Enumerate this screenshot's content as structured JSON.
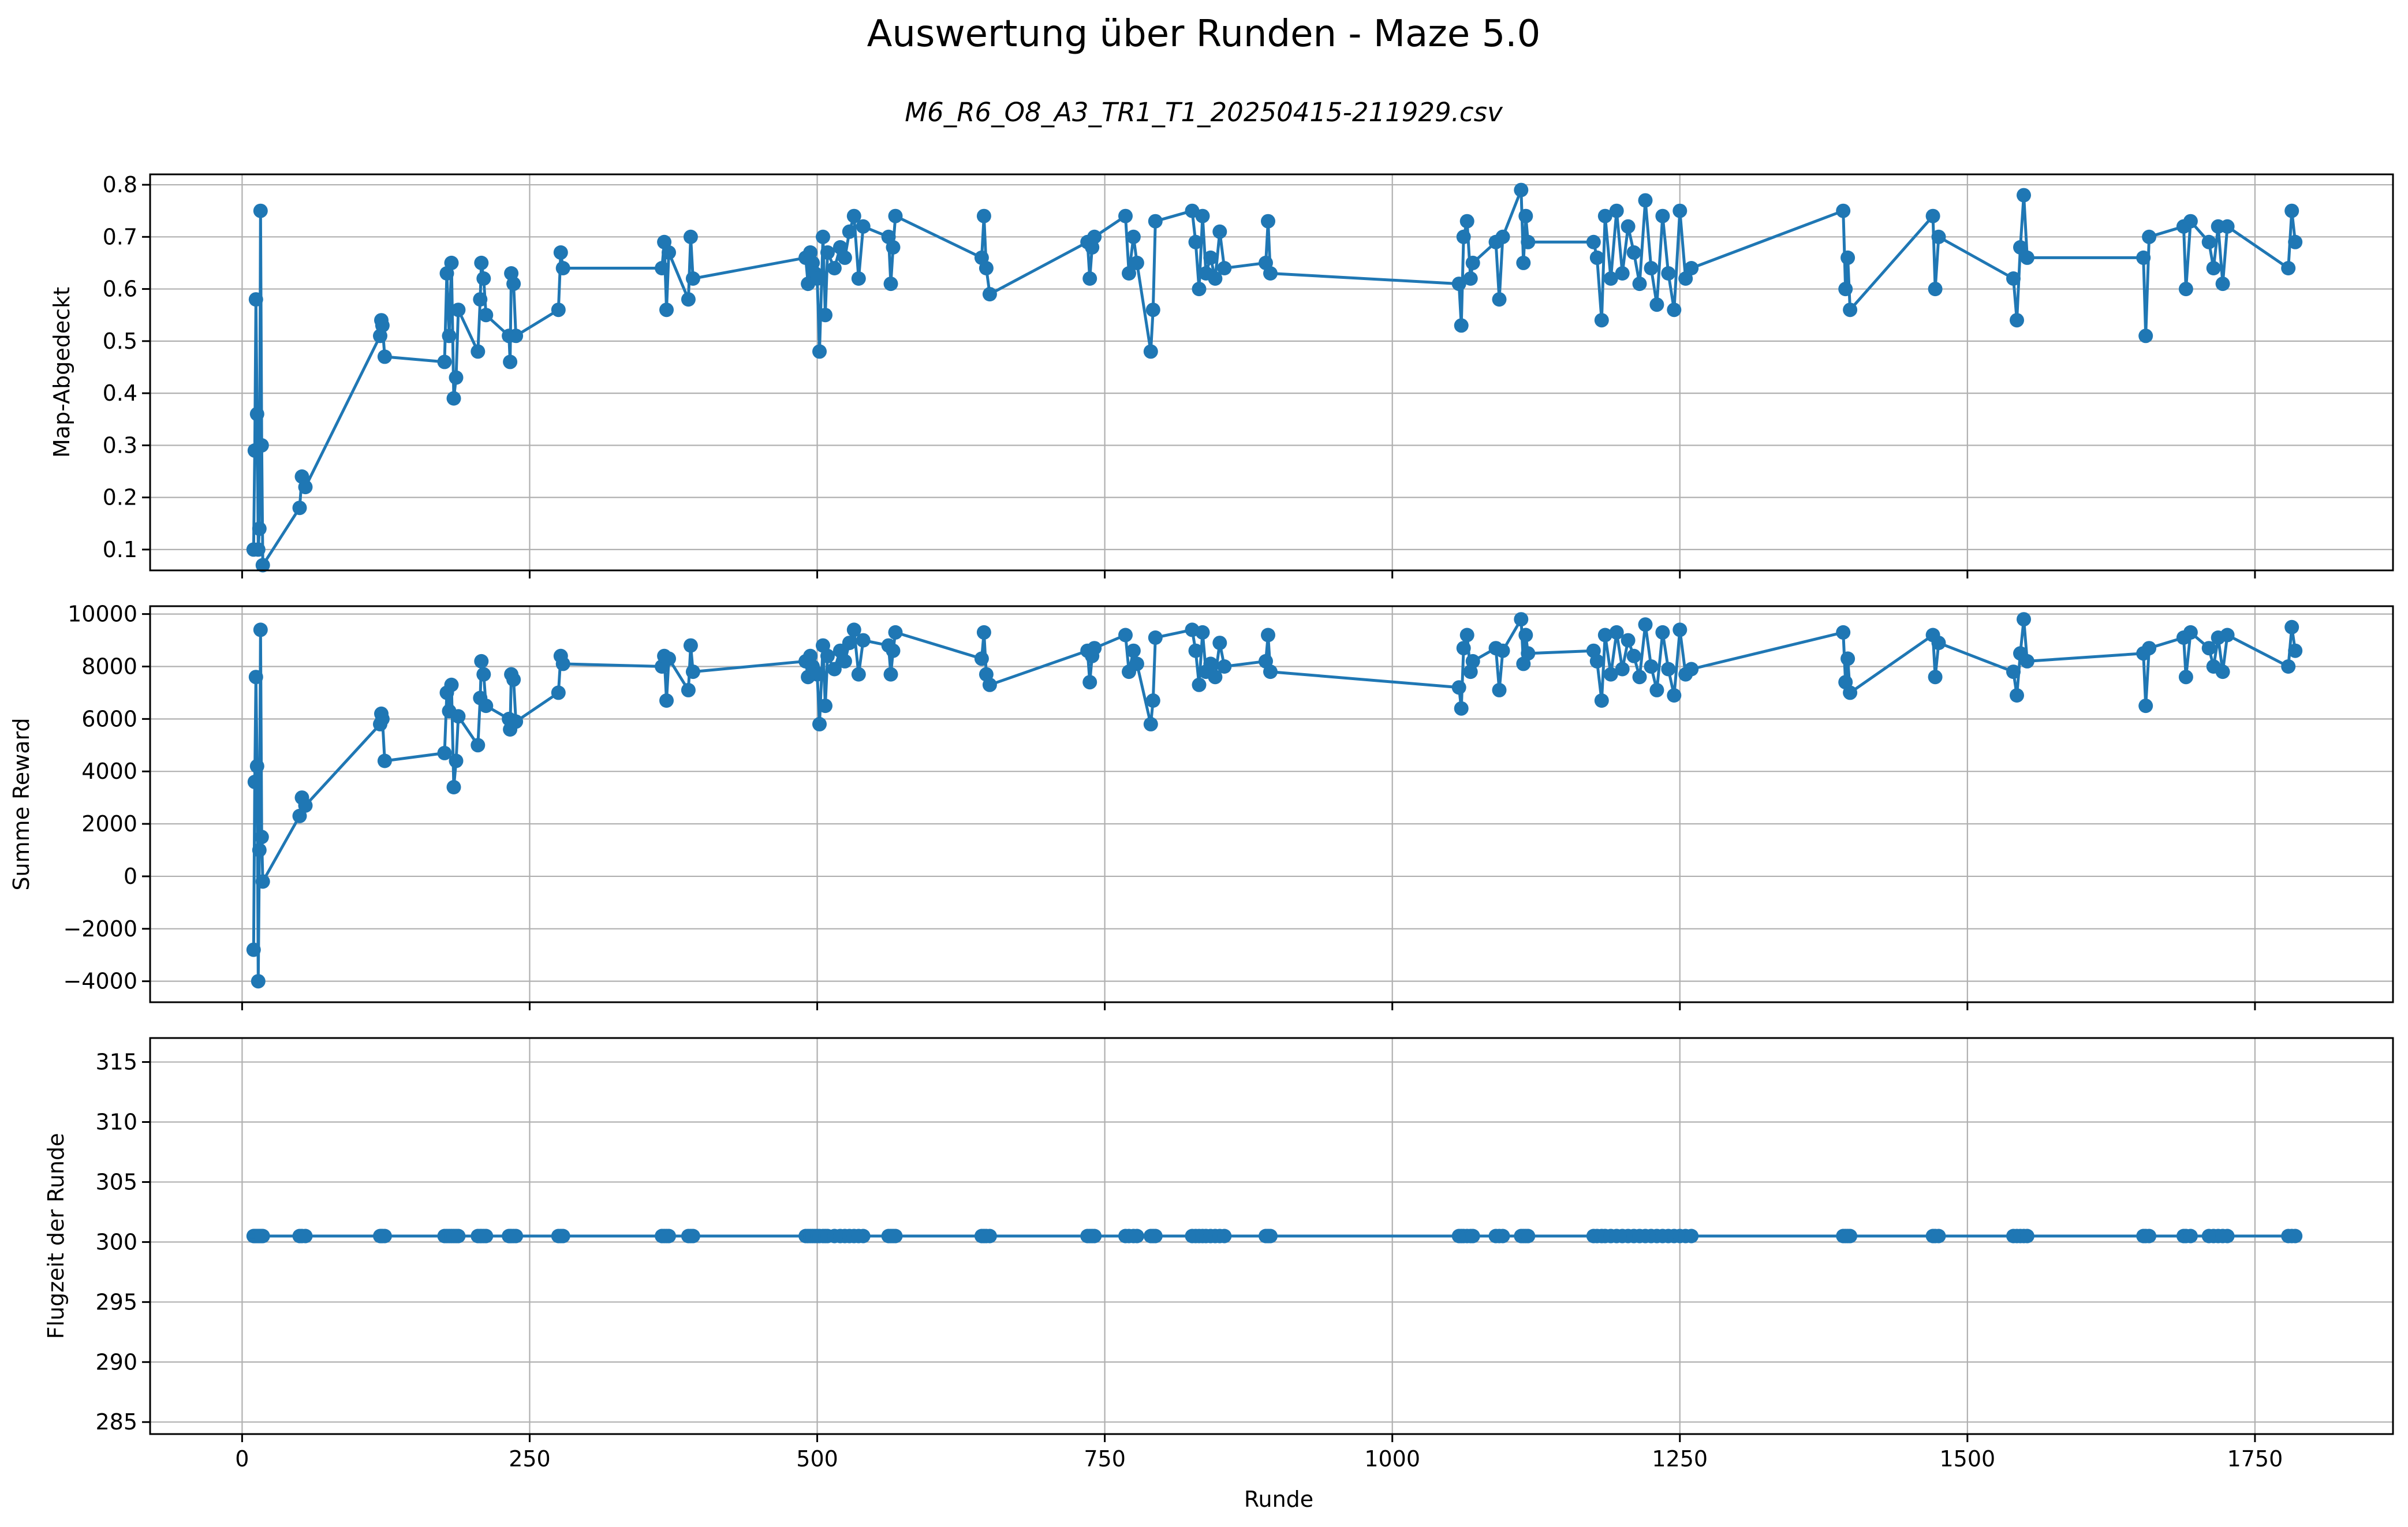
{
  "figure": {
    "title": "Auswertung über Runden - Maze 5.0",
    "subtitle": "M6_R6_O8_A3_TR1_T1_20250415-211929.csv",
    "xlabel": "Runde",
    "series_color": "#1f77b4",
    "grid": true
  },
  "chart_data": [
    {
      "type": "line",
      "markers": true,
      "ylabel": "Map-Abgedeckt",
      "xlim": [
        -80,
        1870
      ],
      "ylim": [
        0.06,
        0.82
      ],
      "xticks": [
        0,
        250,
        500,
        750,
        1000,
        1250,
        1500,
        1750
      ],
      "yticks": [
        0.1,
        0.2,
        0.3,
        0.4,
        0.5,
        0.6,
        0.7,
        0.8
      ],
      "ytick_labels": [
        "0.1",
        "0.2",
        "0.3",
        "0.4",
        "0.5",
        "0.6",
        "0.7",
        "0.8"
      ],
      "x": [
        10,
        11,
        12,
        13,
        14,
        15,
        16,
        17,
        18,
        50,
        52,
        55,
        120,
        121,
        122,
        124,
        176,
        178,
        180,
        182,
        184,
        186,
        188,
        205,
        207,
        208,
        210,
        212,
        232,
        233,
        234,
        236,
        238,
        275,
        277,
        279,
        365,
        367,
        369,
        371,
        388,
        390,
        392,
        490,
        492,
        494,
        496,
        498,
        500,
        502,
        505,
        507,
        509,
        515,
        520,
        524,
        528,
        532,
        536,
        540,
        562,
        564,
        566,
        568,
        643,
        645,
        647,
        650,
        735,
        737,
        739,
        741,
        768,
        771,
        775,
        778,
        790,
        792,
        794,
        826,
        829,
        832,
        835,
        838,
        842,
        846,
        850,
        854,
        890,
        892,
        894,
        1058,
        1060,
        1062,
        1065,
        1068,
        1070,
        1090,
        1093,
        1096,
        1112,
        1114,
        1116,
        1118,
        1175,
        1178,
        1182,
        1185,
        1190,
        1195,
        1200,
        1205,
        1210,
        1215,
        1220,
        1225,
        1230,
        1235,
        1240,
        1245,
        1250,
        1255,
        1260,
        1392,
        1394,
        1396,
        1398,
        1470,
        1472,
        1475,
        1540,
        1543,
        1546,
        1549,
        1552,
        1653,
        1655,
        1658,
        1688,
        1690,
        1694,
        1710,
        1714,
        1718,
        1722,
        1726,
        1779,
        1782,
        1785
      ],
      "values": [
        0.1,
        0.29,
        0.58,
        0.36,
        0.1,
        0.14,
        0.75,
        0.3,
        0.07,
        0.18,
        0.24,
        0.22,
        0.51,
        0.54,
        0.53,
        0.47,
        0.46,
        0.63,
        0.51,
        0.65,
        0.39,
        0.43,
        0.56,
        0.48,
        0.58,
        0.65,
        0.62,
        0.55,
        0.51,
        0.46,
        0.63,
        0.61,
        0.51,
        0.56,
        0.67,
        0.64,
        0.64,
        0.69,
        0.56,
        0.67,
        0.58,
        0.7,
        0.62,
        0.66,
        0.61,
        0.67,
        0.65,
        0.63,
        0.62,
        0.48,
        0.7,
        0.55,
        0.67,
        0.64,
        0.68,
        0.66,
        0.71,
        0.74,
        0.62,
        0.72,
        0.7,
        0.61,
        0.68,
        0.74,
        0.66,
        0.74,
        0.64,
        0.59,
        0.69,
        0.62,
        0.68,
        0.7,
        0.74,
        0.63,
        0.7,
        0.65,
        0.48,
        0.56,
        0.73,
        0.75,
        0.69,
        0.6,
        0.74,
        0.63,
        0.66,
        0.62,
        0.71,
        0.64,
        0.65,
        0.73,
        0.63,
        0.61,
        0.53,
        0.7,
        0.73,
        0.62,
        0.65,
        0.69,
        0.58,
        0.7,
        0.79,
        0.65,
        0.74,
        0.69,
        0.69,
        0.66,
        0.54,
        0.74,
        0.62,
        0.75,
        0.63,
        0.72,
        0.67,
        0.61,
        0.77,
        0.64,
        0.57,
        0.74,
        0.63,
        0.56,
        0.75,
        0.62,
        0.64,
        0.75,
        0.6,
        0.66,
        0.56,
        0.74,
        0.6,
        0.7,
        0.62,
        0.54,
        0.68,
        0.78,
        0.66,
        0.66,
        0.51,
        0.7,
        0.72,
        0.6,
        0.73,
        0.69,
        0.64,
        0.72,
        0.61,
        0.72,
        0.64,
        0.75,
        0.69
      ]
    },
    {
      "type": "line",
      "markers": true,
      "ylabel": "Summe Reward",
      "xlim": [
        -80,
        1870
      ],
      "ylim": [
        -4800,
        10300
      ],
      "xticks": [
        0,
        250,
        500,
        750,
        1000,
        1250,
        1500,
        1750
      ],
      "yticks": [
        -4000,
        -2000,
        0,
        2000,
        4000,
        6000,
        8000,
        10000
      ],
      "ytick_labels": [
        "−4000",
        "−2000",
        "0",
        "2000",
        "4000",
        "6000",
        "8000",
        "10000"
      ],
      "x": [
        10,
        11,
        12,
        13,
        14,
        15,
        16,
        17,
        18,
        50,
        52,
        55,
        120,
        121,
        122,
        124,
        176,
        178,
        180,
        182,
        184,
        186,
        188,
        205,
        207,
        208,
        210,
        212,
        232,
        233,
        234,
        236,
        238,
        275,
        277,
        279,
        365,
        367,
        369,
        371,
        388,
        390,
        392,
        490,
        492,
        494,
        496,
        498,
        500,
        502,
        505,
        507,
        509,
        515,
        520,
        524,
        528,
        532,
        536,
        540,
        562,
        564,
        566,
        568,
        643,
        645,
        647,
        650,
        735,
        737,
        739,
        741,
        768,
        771,
        775,
        778,
        790,
        792,
        794,
        826,
        829,
        832,
        835,
        838,
        842,
        846,
        850,
        854,
        890,
        892,
        894,
        1058,
        1060,
        1062,
        1065,
        1068,
        1070,
        1090,
        1093,
        1096,
        1112,
        1114,
        1116,
        1118,
        1175,
        1178,
        1182,
        1185,
        1190,
        1195,
        1200,
        1205,
        1210,
        1215,
        1220,
        1225,
        1230,
        1235,
        1240,
        1245,
        1250,
        1255,
        1260,
        1392,
        1394,
        1396,
        1398,
        1470,
        1472,
        1475,
        1540,
        1543,
        1546,
        1549,
        1552,
        1653,
        1655,
        1658,
        1688,
        1690,
        1694,
        1710,
        1714,
        1718,
        1722,
        1726,
        1779,
        1782,
        1785
      ],
      "values": [
        -2800,
        3600,
        7600,
        4200,
        -4000,
        1000,
        9400,
        1500,
        -200,
        2300,
        3000,
        2700,
        5800,
        6200,
        6000,
        4400,
        4700,
        7000,
        6300,
        7300,
        3400,
        4400,
        6100,
        5000,
        6800,
        8200,
        7700,
        6500,
        6000,
        5600,
        7700,
        7500,
        5900,
        7000,
        8400,
        8100,
        8000,
        8400,
        6700,
        8300,
        7100,
        8800,
        7800,
        8200,
        7600,
        8400,
        8000,
        7800,
        7700,
        5800,
        8800,
        6500,
        8400,
        7900,
        8600,
        8200,
        8900,
        9400,
        7700,
        9000,
        8800,
        7700,
        8600,
        9300,
        8300,
        9300,
        7700,
        7300,
        8600,
        7400,
        8400,
        8700,
        9200,
        7800,
        8600,
        8100,
        5800,
        6700,
        9100,
        9400,
        8600,
        7300,
        9300,
        7800,
        8100,
        7600,
        8900,
        8000,
        8200,
        9200,
        7800,
        7200,
        6400,
        8700,
        9200,
        7800,
        8200,
        8700,
        7100,
        8600,
        9800,
        8100,
        9200,
        8500,
        8600,
        8200,
        6700,
        9200,
        7700,
        9300,
        7900,
        9000,
        8400,
        7600,
        9600,
        8000,
        7100,
        9300,
        7900,
        6900,
        9400,
        7700,
        7900,
        9300,
        7400,
        8300,
        7000,
        9200,
        7600,
        8900,
        7800,
        6900,
        8500,
        9800,
        8200,
        8500,
        6500,
        8700,
        9100,
        7600,
        9300,
        8700,
        8000,
        9100,
        7800,
        9200,
        8000,
        9500,
        8600
      ]
    },
    {
      "type": "line",
      "markers": true,
      "ylabel": "Flugzeit der Runde",
      "xlim": [
        -80,
        1870
      ],
      "ylim": [
        284,
        317
      ],
      "xticks": [
        0,
        250,
        500,
        750,
        1000,
        1250,
        1500,
        1750
      ],
      "xtick_labels": [
        "0",
        "250",
        "500",
        "750",
        "1000",
        "1250",
        "1500",
        "1750"
      ],
      "yticks": [
        285,
        290,
        295,
        300,
        305,
        310,
        315
      ],
      "ytick_labels": [
        "285",
        "290",
        "295",
        "300",
        "305",
        "310",
        "315"
      ],
      "x": [
        10,
        11,
        12,
        13,
        14,
        15,
        16,
        17,
        18,
        50,
        52,
        55,
        120,
        121,
        122,
        124,
        176,
        178,
        180,
        182,
        184,
        186,
        188,
        205,
        207,
        208,
        210,
        212,
        232,
        233,
        234,
        236,
        238,
        275,
        277,
        279,
        365,
        367,
        369,
        371,
        388,
        390,
        392,
        490,
        492,
        494,
        496,
        498,
        500,
        502,
        505,
        507,
        509,
        515,
        520,
        524,
        528,
        532,
        536,
        540,
        562,
        564,
        566,
        568,
        643,
        645,
        647,
        650,
        735,
        737,
        739,
        741,
        768,
        771,
        775,
        778,
        790,
        792,
        794,
        826,
        829,
        832,
        835,
        838,
        842,
        846,
        850,
        854,
        890,
        892,
        894,
        1058,
        1060,
        1062,
        1065,
        1068,
        1070,
        1090,
        1093,
        1096,
        1112,
        1114,
        1116,
        1118,
        1175,
        1178,
        1182,
        1185,
        1190,
        1195,
        1200,
        1205,
        1210,
        1215,
        1220,
        1225,
        1230,
        1235,
        1240,
        1245,
        1250,
        1255,
        1260,
        1392,
        1394,
        1396,
        1398,
        1470,
        1472,
        1475,
        1540,
        1543,
        1546,
        1549,
        1552,
        1653,
        1655,
        1658,
        1688,
        1690,
        1694,
        1710,
        1714,
        1718,
        1722,
        1726,
        1779,
        1782,
        1785
      ],
      "values": [
        300.5,
        300.5,
        300.5,
        300.5,
        300.5,
        300.5,
        300.5,
        300.5,
        300.5,
        300.5,
        300.5,
        300.5,
        300.5,
        300.5,
        300.5,
        300.5,
        300.5,
        300.5,
        300.5,
        300.5,
        300.5,
        300.5,
        300.5,
        300.5,
        300.5,
        300.5,
        300.5,
        300.5,
        300.5,
        300.5,
        300.5,
        300.5,
        300.5,
        300.5,
        300.5,
        300.5,
        300.5,
        300.5,
        300.5,
        300.5,
        300.5,
        300.5,
        300.5,
        300.5,
        300.5,
        300.5,
        300.5,
        300.5,
        300.5,
        300.5,
        300.5,
        300.5,
        300.5,
        300.5,
        300.5,
        300.5,
        300.5,
        300.5,
        300.5,
        300.5,
        300.5,
        300.5,
        300.5,
        300.5,
        300.5,
        300.5,
        300.5,
        300.5,
        300.5,
        300.5,
        300.5,
        300.5,
        300.5,
        300.5,
        300.5,
        300.5,
        300.5,
        300.5,
        300.5,
        300.5,
        300.5,
        300.5,
        300.5,
        300.5,
        300.5,
        300.5,
        300.5,
        300.5,
        300.5,
        300.5,
        300.5,
        300.5,
        300.5,
        300.5,
        300.5,
        300.5,
        300.5,
        300.5,
        300.5,
        300.5,
        300.5,
        300.5,
        300.5,
        300.5,
        300.5,
        300.5,
        300.5,
        300.5,
        300.5,
        300.5,
        300.5,
        300.5,
        300.5,
        300.5,
        300.5,
        300.5,
        300.5,
        300.5,
        300.5,
        300.5,
        300.5,
        300.5,
        300.5,
        300.5,
        300.5,
        300.5,
        300.5,
        300.5,
        300.5,
        300.5,
        300.5,
        300.5,
        300.5,
        300.5,
        300.5,
        300.5,
        300.5,
        300.5,
        300.5,
        300.5,
        300.5,
        300.5,
        300.5,
        300.5,
        300.5,
        300.5,
        300.5,
        300.5,
        300.5
      ]
    }
  ]
}
